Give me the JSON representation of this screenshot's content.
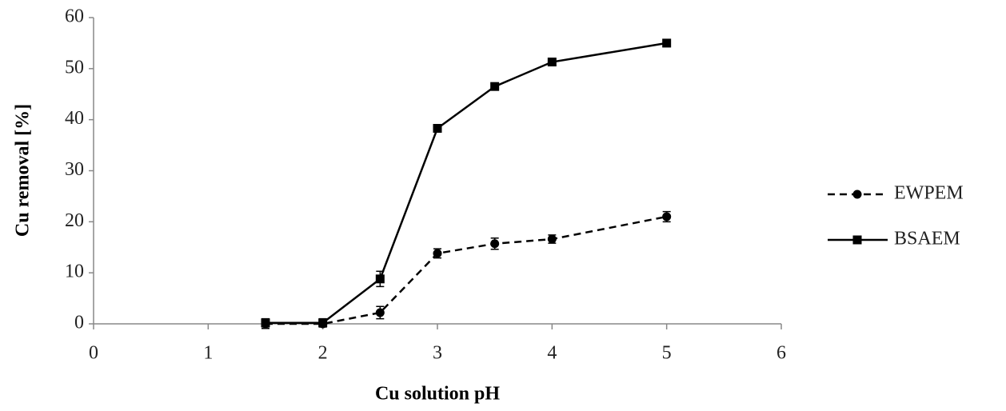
{
  "chart_data": {
    "type": "line",
    "x_label": "Cu solution pH",
    "y_label": "Cu removal [%]",
    "xlim": [
      0,
      6
    ],
    "xticks": [
      0,
      1,
      2,
      3,
      4,
      5,
      6
    ],
    "ylim": [
      0,
      60
    ],
    "yticks": [
      0,
      10,
      20,
      30,
      40,
      50,
      60
    ],
    "grid": false,
    "legend": "right",
    "series": [
      {
        "name": "EWPEM",
        "color": "#000000",
        "line_style": "dashed",
        "marker": "circle",
        "x": [
          1.5,
          2,
          2.5,
          3,
          3.5,
          4,
          5
        ],
        "values": [
          0,
          0,
          2.2,
          13.8,
          15.7,
          16.6,
          21.0
        ],
        "errors": [
          0.9,
          0.6,
          1.2,
          0.9,
          1.1,
          0.8,
          1.0
        ]
      },
      {
        "name": "BSAEM",
        "color": "#000000",
        "line_style": "solid",
        "marker": "square",
        "x": [
          1.5,
          2,
          2.5,
          3,
          3.5,
          4,
          5
        ],
        "values": [
          0.2,
          0.2,
          8.8,
          38.3,
          46.5,
          51.3,
          55.0
        ],
        "errors": [
          0.8,
          0.8,
          1.5,
          0.6,
          0.6,
          0.6,
          0.6
        ]
      }
    ]
  }
}
